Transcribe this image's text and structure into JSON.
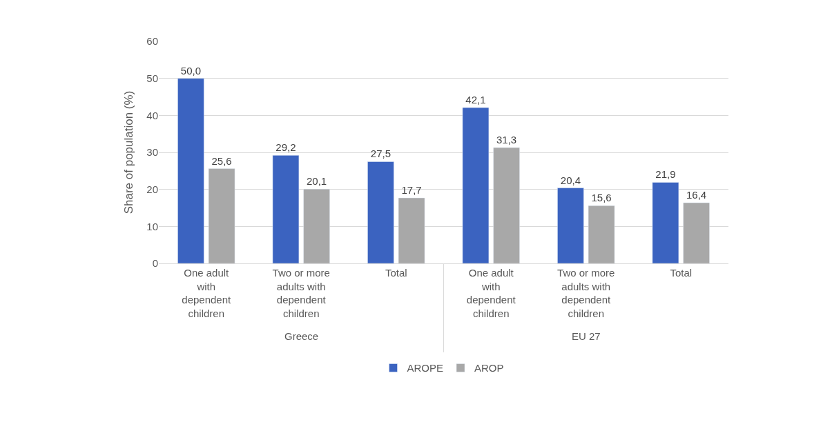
{
  "chart_data": {
    "type": "bar",
    "ylabel": "Share of population (%)",
    "categories": [
      "One adult with dependent children",
      "Two or more adults with dependent children",
      "Total",
      "One adult with dependent children",
      "Two or more adults with dependent children",
      "Total"
    ],
    "series": [
      {
        "name": "AROPE",
        "color": "#3b63c0",
        "values": [
          50.0,
          29.2,
          27.5,
          42.1,
          20.4,
          21.9
        ],
        "value_labels": [
          "50,0",
          "29,2",
          "27,5",
          "42,1",
          "20,4",
          "21,9"
        ]
      },
      {
        "name": "AROP",
        "color": "#a8a8a8",
        "values": [
          25.6,
          20.1,
          17.7,
          31.3,
          15.6,
          16.4
        ],
        "value_labels": [
          "25,6",
          "20,1",
          "17,7",
          "31,3",
          "15,6",
          "16,4"
        ]
      }
    ],
    "annotations": [
      "Greece",
      "EU 27"
    ],
    "ylim": [
      0,
      60
    ],
    "yticks": [
      0,
      10,
      20,
      30,
      40,
      50,
      60
    ],
    "grid": "y",
    "legend": "bottom"
  }
}
